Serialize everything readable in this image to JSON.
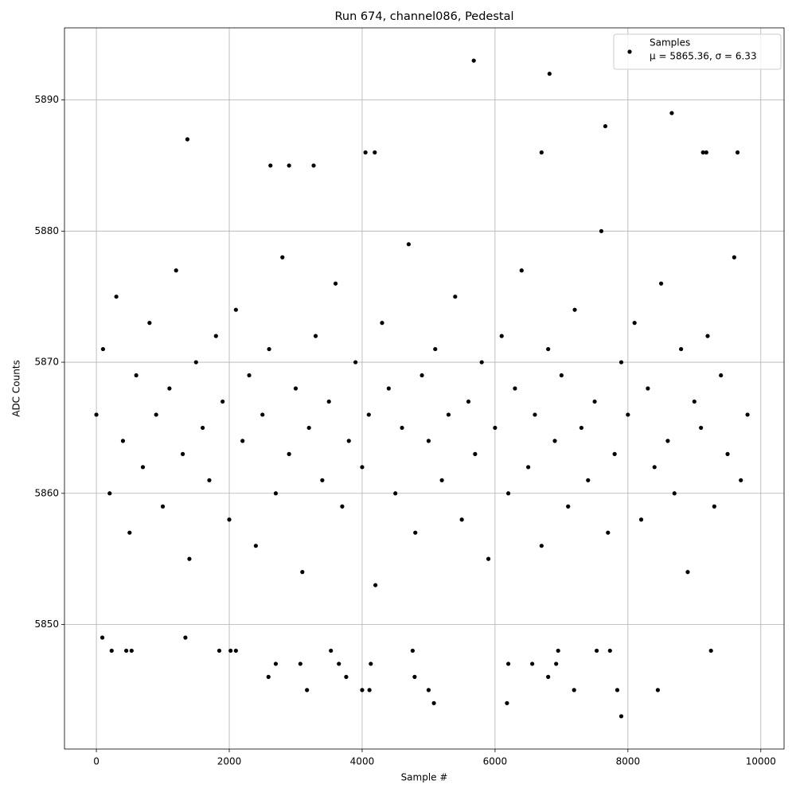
{
  "chart_data": {
    "type": "scatter",
    "title": "Run 674, channel086, Pedestal",
    "xlabel": "Sample #",
    "ylabel": "ADC Counts",
    "xlim": [
      -480,
      10350
    ],
    "ylim": [
      5840.5,
      5895.5
    ],
    "xticks": [
      0,
      2000,
      4000,
      6000,
      8000,
      10000
    ],
    "yticks": [
      5850,
      5860,
      5870,
      5880,
      5890
    ],
    "grid": true,
    "legend": "upper right",
    "legend_note": "μ = 5865.36, σ = 6.33",
    "series": [
      {
        "name": "Samples",
        "color": "#000000",
        "x": [
          0,
          100,
          200,
          300,
          400,
          500,
          600,
          700,
          800,
          900,
          1000,
          1100,
          1200,
          1300,
          1400,
          1500,
          1600,
          1700,
          1800,
          1900,
          2000,
          2100,
          2200,
          2300,
          2400,
          2500,
          2600,
          2700,
          2800,
          2900,
          3000,
          3100,
          3200,
          3300,
          3400,
          3500,
          3600,
          3700,
          3800,
          3900,
          4000,
          4100,
          4200,
          4300,
          4400,
          4500,
          4600,
          4700,
          4800,
          4900,
          5000,
          5100,
          5200,
          5300,
          5400,
          5500,
          5600,
          5700,
          5800,
          5900,
          6000,
          6100,
          6200,
          6300,
          6400,
          6500,
          6600,
          6700,
          6800,
          6900,
          7000,
          7100,
          7200,
          7300,
          7400,
          7500,
          7600,
          7700,
          7800,
          7900,
          8000,
          8100,
          8200,
          8300,
          8400,
          8500,
          8600,
          8700,
          8800,
          8900,
          9000,
          9100,
          9200,
          9300,
          9400,
          9500,
          9600,
          9700,
          9800,
          5680,
          6820,
          7660,
          8660,
          1370,
          6700,
          4050,
          4190,
          9130,
          9180,
          9650,
          2620,
          2900,
          3270,
          7900,
          5080,
          6180,
          3170,
          4000,
          4110,
          5000,
          7190,
          7840,
          8450,
          2590,
          3760,
          4790,
          6800,
          2700,
          3070,
          3650,
          4130,
          6200,
          6560,
          6920,
          230,
          450,
          530,
          1850,
          2020,
          2100,
          3530,
          4760,
          6950,
          7530,
          7730,
          9250,
          90,
          1340
        ],
        "values": [
          5866,
          5871,
          5860,
          5875,
          5864,
          5857,
          5869,
          5862,
          5873,
          5866,
          5859,
          5868,
          5877,
          5863,
          5855,
          5870,
          5865,
          5861,
          5872,
          5867,
          5858,
          5874,
          5864,
          5869,
          5856,
          5866,
          5871,
          5860,
          5878,
          5863,
          5868,
          5854,
          5865,
          5872,
          5861,
          5867,
          5876,
          5859,
          5864,
          5870,
          5862,
          5866,
          5853,
          5873,
          5868,
          5860,
          5865,
          5879,
          5857,
          5869,
          5864,
          5871,
          5861,
          5866,
          5875,
          5858,
          5867,
          5863,
          5870,
          5855,
          5865,
          5872,
          5860,
          5868,
          5877,
          5862,
          5866,
          5856,
          5871,
          5864,
          5869,
          5859,
          5874,
          5865,
          5861,
          5867,
          5880,
          5857,
          5863,
          5870,
          5866,
          5873,
          5858,
          5868,
          5862,
          5876,
          5864,
          5860,
          5871,
          5854,
          5867,
          5865,
          5872,
          5859,
          5869,
          5863,
          5878,
          5861,
          5866,
          5893,
          5892,
          5888,
          5889,
          5887,
          5886,
          5886,
          5886,
          5886,
          5886,
          5886,
          5885,
          5885,
          5885,
          5843,
          5844,
          5844,
          5845,
          5845,
          5845,
          5845,
          5845,
          5845,
          5845,
          5846,
          5846,
          5846,
          5846,
          5847,
          5847,
          5847,
          5847,
          5847,
          5847,
          5847,
          5848,
          5848,
          5848,
          5848,
          5848,
          5848,
          5848,
          5848,
          5848,
          5848,
          5848,
          5848,
          5849,
          5849
        ]
      }
    ]
  }
}
